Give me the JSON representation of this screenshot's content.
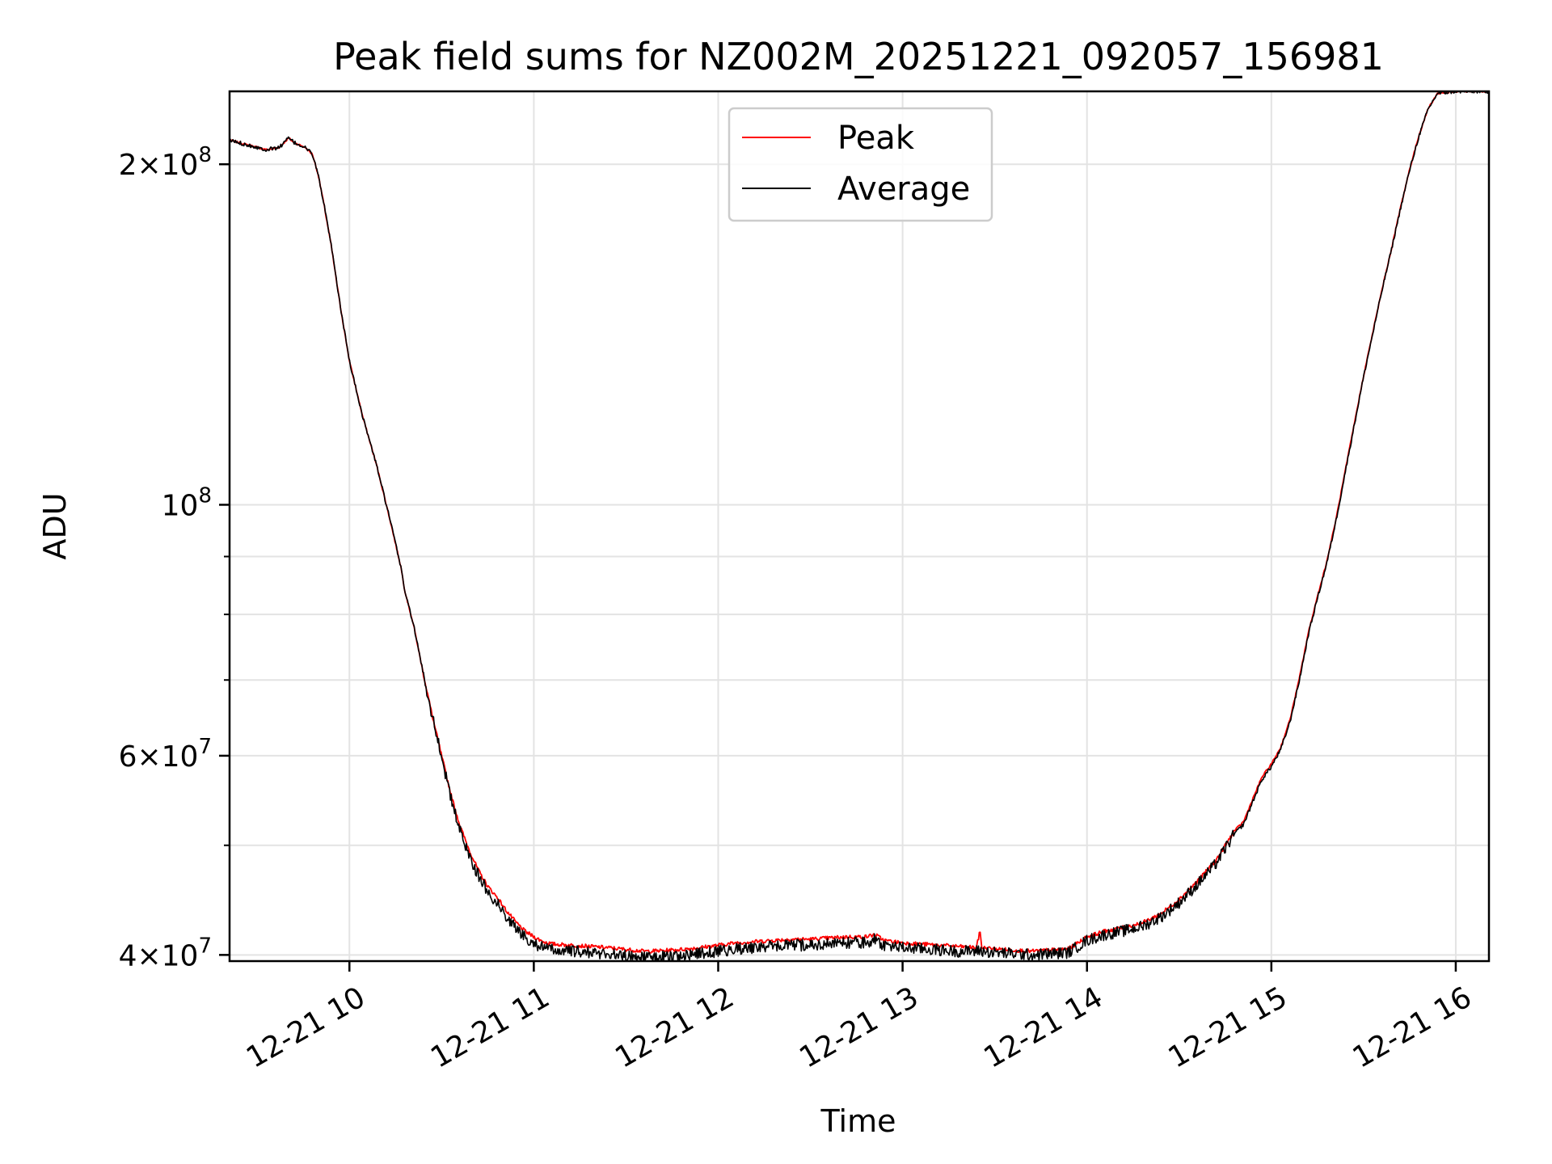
{
  "chart_data": {
    "type": "line",
    "title": "Peak field sums for NZ002M_20251221_092057_156981",
    "xlabel": "Time",
    "ylabel": "ADU",
    "yscale": "log",
    "xlim": [
      9.35,
      16.18
    ],
    "ylim": [
      39500000,
      232000000
    ],
    "grid": true,
    "legend_position": "top-center",
    "x_ticks": [
      {
        "value": 10,
        "label": "12-21 10"
      },
      {
        "value": 11,
        "label": "12-21 11"
      },
      {
        "value": 12,
        "label": "12-21 12"
      },
      {
        "value": 13,
        "label": "12-21 13"
      },
      {
        "value": 14,
        "label": "12-21 14"
      },
      {
        "value": 15,
        "label": "12-21 15"
      },
      {
        "value": 16,
        "label": "12-21 16"
      }
    ],
    "y_major_ticks": [
      {
        "value": 40000000,
        "mantissa": "4",
        "exp": "7"
      },
      {
        "value": 60000000,
        "mantissa": "6",
        "exp": "7"
      },
      {
        "value": 100000000,
        "mantissa": "",
        "exp": "8"
      },
      {
        "value": 200000000,
        "mantissa": "2",
        "exp": "8"
      }
    ],
    "y_minor_ticks": [
      50000000,
      70000000,
      80000000,
      90000000
    ],
    "series": [
      {
        "name": "Peak",
        "color": "#ff0000",
        "x": [
          9.35,
          9.45,
          9.55,
          9.62,
          9.67,
          9.7,
          9.73,
          9.76,
          9.8,
          9.83,
          9.86,
          9.9,
          9.95,
          10.0,
          10.07,
          10.15,
          10.22,
          10.28,
          10.3,
          10.35,
          10.4,
          10.45,
          10.5,
          10.55,
          10.6,
          10.65,
          10.7,
          10.75,
          10.8,
          10.85,
          10.9,
          10.95,
          11.0,
          11.05,
          11.1,
          11.2,
          11.3,
          11.4,
          11.5,
          11.6,
          11.7,
          11.8,
          11.9,
          12.0,
          12.1,
          12.2,
          12.3,
          12.4,
          12.5,
          12.6,
          12.7,
          12.8,
          12.85,
          12.9,
          13.0,
          13.1,
          13.2,
          13.3,
          13.4,
          13.42,
          13.43,
          13.5,
          13.6,
          13.7,
          13.8,
          13.9,
          14.0,
          14.1,
          14.2,
          14.3,
          14.4,
          14.5,
          14.6,
          14.7,
          14.75,
          14.8,
          14.85,
          14.9,
          14.95,
          15.0,
          15.05,
          15.1,
          15.15,
          15.2,
          15.25,
          15.3,
          15.35,
          15.4,
          15.45,
          15.5,
          15.55,
          15.6,
          15.65,
          15.7,
          15.75,
          15.8,
          15.85,
          15.9,
          16.0,
          16.18
        ],
        "values": [
          210000000,
          208000000,
          206000000,
          207000000,
          211000000,
          209000000,
          208000000,
          207000000,
          204000000,
          196000000,
          185000000,
          170000000,
          150000000,
          134000000,
          120000000,
          108000000,
          97000000,
          88000000,
          84000000,
          78000000,
          71000000,
          65000000,
          60000000,
          55500000,
          52000000,
          49500000,
          47500000,
          46000000,
          45000000,
          43800000,
          42800000,
          42000000,
          41500000,
          41100000,
          40900000,
          40800000,
          40700000,
          40600000,
          40450000,
          40300000,
          40350000,
          40450000,
          40600000,
          40800000,
          41000000,
          41100000,
          41200000,
          41300000,
          41300000,
          41400000,
          41500000,
          41500000,
          41700000,
          41200000,
          41000000,
          40900000,
          40800000,
          40700000,
          40600000,
          42000000,
          40600000,
          40500000,
          40400000,
          40300000,
          40400000,
          40500000,
          41500000,
          42000000,
          42300000,
          42700000,
          43500000,
          44800000,
          46500000,
          48500000,
          50000000,
          51500000,
          52500000,
          55000000,
          57500000,
          59000000,
          61000000,
          64500000,
          70000000,
          77000000,
          83000000,
          89000000,
          97000000,
          107000000,
          118000000,
          130000000,
          142000000,
          155000000,
          168000000,
          183000000,
          198000000,
          212000000,
          224000000,
          231000000,
          232000000,
          232000000
        ]
      },
      {
        "name": "Average",
        "color": "#000000",
        "x": [
          9.35,
          9.45,
          9.55,
          9.62,
          9.67,
          9.7,
          9.73,
          9.76,
          9.8,
          9.83,
          9.86,
          9.9,
          9.95,
          10.0,
          10.07,
          10.15,
          10.22,
          10.28,
          10.3,
          10.35,
          10.4,
          10.45,
          10.5,
          10.55,
          10.6,
          10.65,
          10.7,
          10.75,
          10.8,
          10.85,
          10.9,
          10.95,
          11.0,
          11.05,
          11.1,
          11.2,
          11.3,
          11.4,
          11.5,
          11.6,
          11.7,
          11.8,
          11.9,
          12.0,
          12.1,
          12.2,
          12.3,
          12.4,
          12.5,
          12.6,
          12.7,
          12.8,
          12.85,
          12.9,
          13.0,
          13.1,
          13.2,
          13.3,
          13.4,
          13.42,
          13.43,
          13.5,
          13.6,
          13.7,
          13.8,
          13.9,
          14.0,
          14.1,
          14.2,
          14.3,
          14.4,
          14.5,
          14.6,
          14.7,
          14.75,
          14.8,
          14.85,
          14.9,
          14.95,
          15.0,
          15.05,
          15.1,
          15.15,
          15.2,
          15.25,
          15.3,
          15.35,
          15.4,
          15.45,
          15.5,
          15.55,
          15.6,
          15.65,
          15.7,
          15.75,
          15.8,
          15.85,
          15.9,
          16.0,
          16.18
        ],
        "values": [
          210000000,
          208000000,
          206000000,
          207000000,
          211000000,
          209000000,
          208000000,
          207000000,
          204000000,
          196000000,
          185000000,
          170000000,
          150000000,
          134000000,
          120000000,
          108000000,
          97000000,
          88000000,
          84000000,
          78000000,
          71000000,
          65000000,
          60000000,
          55000000,
          51500000,
          49000000,
          47000000,
          45500000,
          44500000,
          43300000,
          42300000,
          41500000,
          41000000,
          40600000,
          40400000,
          40300000,
          40200000,
          40100000,
          39950000,
          39800000,
          39850000,
          39950000,
          40100000,
          40300000,
          40500000,
          40600000,
          40700000,
          40800000,
          40800000,
          40900000,
          41000000,
          41000000,
          41300000,
          40800000,
          40600000,
          40500000,
          40400000,
          40300000,
          40300000,
          40400000,
          40300000,
          40200000,
          40100000,
          40000000,
          40100000,
          40200000,
          41200000,
          41700000,
          42000000,
          42400000,
          43200000,
          44500000,
          46200000,
          48200000,
          49700000,
          51200000,
          52200000,
          54700000,
          57200000,
          58700000,
          60700000,
          64200000,
          69700000,
          76700000,
          82700000,
          88700000,
          96700000,
          106700000,
          117700000,
          129700000,
          141700000,
          154700000,
          167700000,
          182700000,
          197700000,
          211700000,
          223700000,
          231000000,
          232000000,
          232000000
        ]
      }
    ]
  }
}
